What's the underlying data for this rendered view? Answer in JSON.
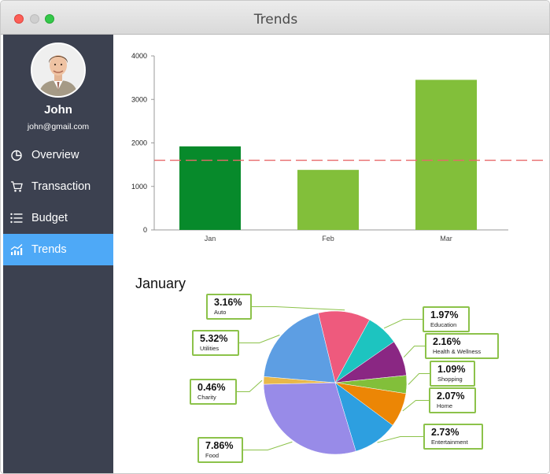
{
  "window": {
    "title": "Trends"
  },
  "user": {
    "name": "John",
    "email": "john@gmail.com"
  },
  "nav": [
    {
      "label": "Overview",
      "icon": "pie-chart-icon"
    },
    {
      "label": "Transaction",
      "icon": "cart-icon"
    },
    {
      "label": "Budget",
      "icon": "list-icon"
    },
    {
      "label": "Trends",
      "icon": "trend-chart-icon",
      "active": true
    }
  ],
  "colors": {
    "sidebar": "#3c4150",
    "active": "#4ea9f7",
    "bar_dark": "#078a2b",
    "bar_light": "#82bf3a",
    "reference_line": "#e8696a",
    "label_border": "#8cc24a"
  },
  "chart_data": [
    {
      "type": "bar",
      "categories": [
        "Jan",
        "Feb",
        "Mar"
      ],
      "values": [
        1920,
        1380,
        3450
      ],
      "yticks": [
        0,
        1000,
        2000,
        3000,
        4000
      ],
      "ylim": [
        0,
        4000
      ],
      "reference_line": 1600,
      "grid": false,
      "highlight_index": 0
    },
    {
      "type": "pie",
      "title": "January",
      "slices": [
        {
          "label": "Auto",
          "value": 3.16,
          "pct": "3.16%",
          "color": "#ee5a7d"
        },
        {
          "label": "Education",
          "value": 1.97,
          "pct": "1.97%",
          "color": "#1dc4c0"
        },
        {
          "label": "Health & Wellness",
          "value": 2.16,
          "pct": "2.16%",
          "color": "#8a2783"
        },
        {
          "label": "Shopping",
          "value": 1.09,
          "pct": "1.09%",
          "color": "#82bf3a"
        },
        {
          "label": "Home",
          "value": 2.07,
          "pct": "2.07%",
          "color": "#ec8605"
        },
        {
          "label": "Entertainment",
          "value": 2.73,
          "pct": "2.73%",
          "color": "#2d9fe0"
        },
        {
          "label": "Food",
          "value": 7.86,
          "pct": "7.86%",
          "color": "#988be8"
        },
        {
          "label": "Charity",
          "value": 0.46,
          "pct": "0.46%",
          "color": "#e8b84a"
        },
        {
          "label": "Utilities",
          "value": 5.32,
          "pct": "5.32%",
          "color": "#5d9ee3"
        }
      ]
    }
  ]
}
